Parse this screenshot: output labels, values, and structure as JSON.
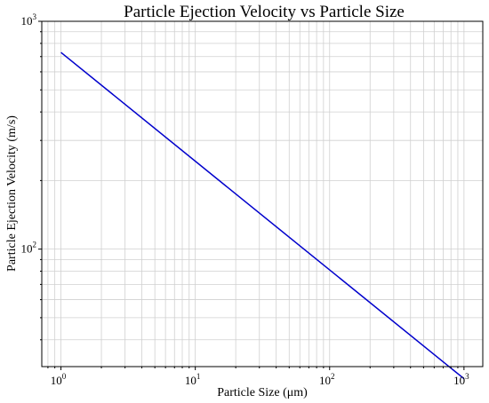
{
  "chart_data": {
    "type": "line",
    "title": "Particle Ejection Velocity vs Particle Size",
    "xlabel": "Particle Size (μm)",
    "ylabel": "Particle Ejection Velocity (m/s)",
    "x_scale": "log",
    "y_scale": "log",
    "xlim": [
      0.72,
      1380
    ],
    "ylim": [
      30.5,
      1000
    ],
    "x_ticks": [
      {
        "value": 1,
        "base": "10",
        "exp": "0"
      },
      {
        "value": 10,
        "base": "10",
        "exp": "1"
      },
      {
        "value": 100,
        "base": "10",
        "exp": "2"
      },
      {
        "value": 1000,
        "base": "10",
        "exp": "3"
      }
    ],
    "y_ticks": [
      {
        "value": 100,
        "base": "10",
        "exp": "2"
      },
      {
        "value": 1000,
        "base": "10",
        "exp": "3"
      }
    ],
    "grid": true,
    "grid_minor": true,
    "series": [
      {
        "color": "#0000cc",
        "x": [
          1,
          1000
        ],
        "y": [
          730,
          27
        ]
      }
    ]
  }
}
